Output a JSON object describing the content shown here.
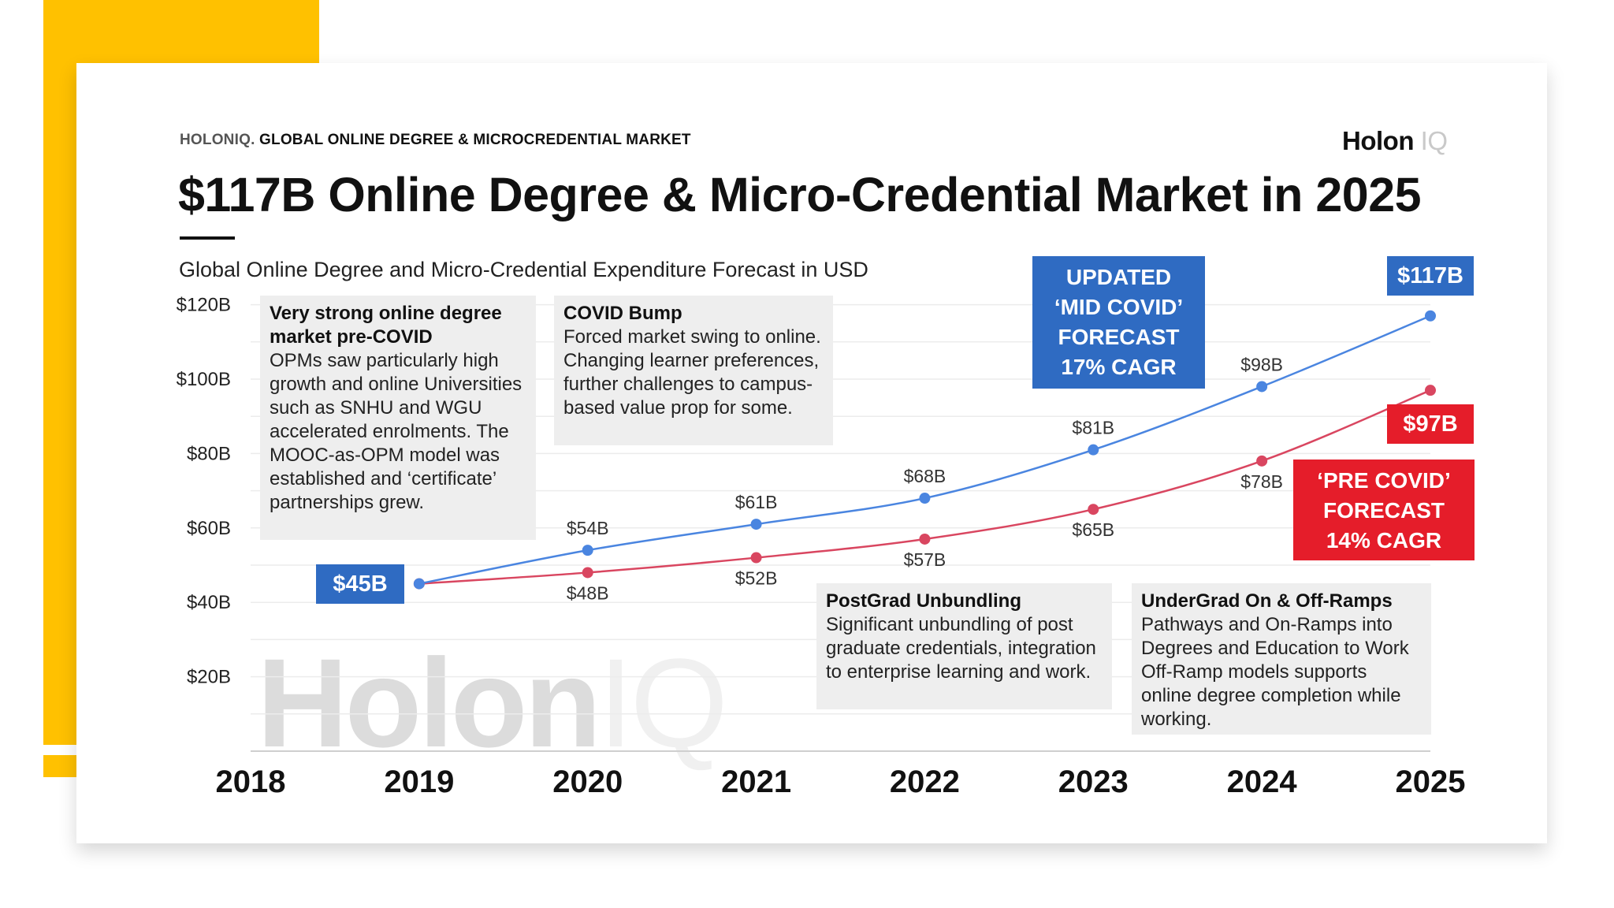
{
  "header": {
    "kicker_brand": "HOLONIQ.",
    "kicker_text": "GLOBAL ONLINE DEGREE & MICROCREDENTIAL MARKET",
    "logo_main": "Holon",
    "logo_iq": "IQ",
    "title": "$117B Online Degree & Micro-Credential Market in 2025",
    "subtitle": "Global Online Degree and Micro-Credential Expenditure Forecast in USD"
  },
  "watermark": {
    "main": "Holon",
    "iq": "IQ"
  },
  "colors": {
    "blue": "#2F6BC2",
    "red": "#E51D2A",
    "yellow": "#FFC100",
    "pre_line": "#D94660",
    "mid_line": "#4A85E0"
  },
  "notes": [
    {
      "title": "Very strong online degree market pre-COVID",
      "body": "OPMs saw particularly high growth and online Universities such as SNHU and WGU accelerated enrolments. The MOOC-as-OPM model was established and ‘certificate’ partnerships grew."
    },
    {
      "title": "COVID Bump",
      "body": "Forced market swing to online. Changing learner preferences, further challenges to campus-based value prop for some."
    },
    {
      "title": "PostGrad Unbundling",
      "body": "Significant unbundling of post graduate credentials, integration to enterprise learning and work."
    },
    {
      "title": "UnderGrad On & Off-Ramps",
      "body": "Pathways and On-Ramps into Degrees and Education to Work Off-Ramp models supports online degree completion while working."
    }
  ],
  "callouts": {
    "mid_covid": [
      "UPDATED",
      "‘MID COVID’",
      "FORECAST",
      "17% CAGR"
    ],
    "pre_covid": [
      "‘PRE COVID’",
      "FORECAST",
      "14% CAGR"
    ],
    "start_tag": "$45B",
    "mid_end_tag": "$117B",
    "pre_end_tag": "$97B"
  },
  "chart_data": {
    "type": "line",
    "title": "Global Online Degree and Micro-Credential Expenditure Forecast in USD",
    "categories": [
      "2018",
      "2019",
      "2020",
      "2021",
      "2022",
      "2023",
      "2024",
      "2025"
    ],
    "y_ticks": [
      "$20B",
      "$40B",
      "$60B",
      "$80B",
      "$100B",
      "$120B"
    ],
    "y_tick_values": [
      20,
      40,
      60,
      80,
      100,
      120
    ],
    "ylim": [
      0,
      120
    ],
    "grid": true,
    "series": [
      {
        "name": "Updated ‘Mid COVID’ Forecast 17% CAGR",
        "x": [
          "2019",
          "2020",
          "2021",
          "2022",
          "2023",
          "2024",
          "2025"
        ],
        "values": [
          45,
          54,
          61,
          68,
          81,
          98,
          117
        ],
        "labels": [
          "",
          "$54B",
          "$61B",
          "$68B",
          "$81B",
          "$98B",
          ""
        ]
      },
      {
        "name": "‘Pre COVID’ Forecast 14% CAGR",
        "x": [
          "2019",
          "2020",
          "2021",
          "2022",
          "2023",
          "2024",
          "2025"
        ],
        "values": [
          45,
          48,
          52,
          57,
          65,
          78,
          97
        ],
        "labels": [
          "",
          "$48B",
          "$52B",
          "$57B",
          "$65B",
          "$78B",
          ""
        ]
      }
    ]
  }
}
